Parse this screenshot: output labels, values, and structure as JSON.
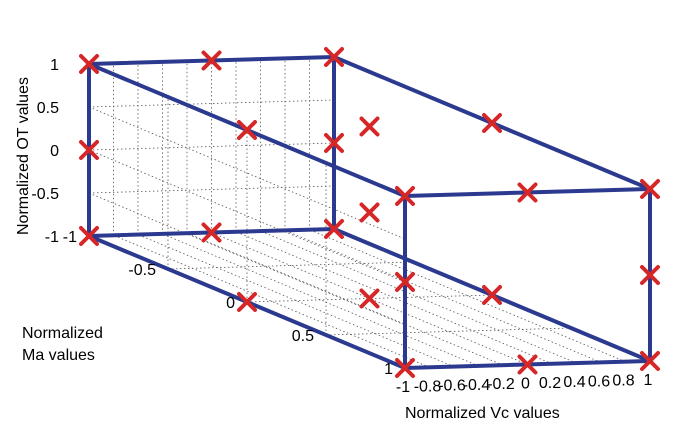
{
  "chart_data": {
    "type": "scatter",
    "projection": "3d",
    "title": "",
    "xlabel": "Normalized Vc values",
    "ylabel_lines": [
      "Normalized",
      "Ma values"
    ],
    "zlabel": "Normalized OT values",
    "xlim": [
      -1,
      1
    ],
    "ylim": [
      -1,
      1
    ],
    "zlim": [
      -1,
      1
    ],
    "x_ticks": [
      "-1",
      "-0.8",
      "-0.6",
      "-0.4",
      "-0.2",
      "0",
      "0.2",
      "0.4",
      "0.6",
      "0.8",
      "1"
    ],
    "x_tick_values": [
      -1,
      -0.8,
      -0.6,
      -0.4,
      -0.2,
      0,
      0.2,
      0.4,
      0.6,
      0.8,
      1
    ],
    "y_ticks": [
      "-1",
      "-0.5",
      "0",
      "0.5",
      "1"
    ],
    "y_tick_values": [
      -1,
      -0.5,
      0,
      0.5,
      1
    ],
    "z_ticks": [
      "-1",
      "-0.5",
      "0",
      "0.5",
      "1"
    ],
    "z_tick_values": [
      -1,
      -0.5,
      0,
      0.5,
      1
    ],
    "grid": true,
    "marker": "x",
    "marker_color": "#d62728",
    "edge_color": "#2b3a8f",
    "points": [
      [
        -1,
        -1,
        -1
      ],
      [
        0,
        -1,
        -1
      ],
      [
        1,
        -1,
        -1
      ],
      [
        -1,
        0,
        -1
      ],
      [
        0,
        0,
        -1
      ],
      [
        1,
        0,
        -1
      ],
      [
        -1,
        1,
        -1
      ],
      [
        0,
        1,
        -1
      ],
      [
        1,
        1,
        -1
      ],
      [
        -1,
        -1,
        0
      ],
      [
        1,
        -1,
        0
      ],
      [
        0,
        0,
        0
      ],
      [
        -1,
        1,
        0
      ],
      [
        1,
        1,
        0
      ],
      [
        -1,
        -1,
        1
      ],
      [
        0,
        -1,
        1
      ],
      [
        1,
        -1,
        1
      ],
      [
        -1,
        0,
        1
      ],
      [
        0,
        0,
        1
      ],
      [
        1,
        0,
        1
      ],
      [
        -1,
        1,
        1
      ],
      [
        0,
        1,
        1
      ],
      [
        1,
        1,
        1
      ]
    ],
    "cube_edges": [
      [
        [
          -1,
          -1,
          -1
        ],
        [
          1,
          -1,
          -1
        ]
      ],
      [
        [
          1,
          -1,
          -1
        ],
        [
          1,
          1,
          -1
        ]
      ],
      [
        [
          1,
          1,
          -1
        ],
        [
          -1,
          1,
          -1
        ]
      ],
      [
        [
          -1,
          1,
          -1
        ],
        [
          -1,
          -1,
          -1
        ]
      ],
      [
        [
          -1,
          -1,
          1
        ],
        [
          1,
          -1,
          1
        ]
      ],
      [
        [
          1,
          -1,
          1
        ],
        [
          1,
          1,
          1
        ]
      ],
      [
        [
          1,
          1,
          1
        ],
        [
          -1,
          1,
          1
        ]
      ],
      [
        [
          -1,
          1,
          1
        ],
        [
          -1,
          -1,
          1
        ]
      ],
      [
        [
          -1,
          -1,
          -1
        ],
        [
          -1,
          -1,
          1
        ]
      ],
      [
        [
          1,
          -1,
          -1
        ],
        [
          1,
          -1,
          1
        ]
      ],
      [
        [
          1,
          1,
          -1
        ],
        [
          1,
          1,
          1
        ]
      ],
      [
        [
          -1,
          1,
          -1
        ],
        [
          -1,
          1,
          1
        ]
      ]
    ]
  }
}
